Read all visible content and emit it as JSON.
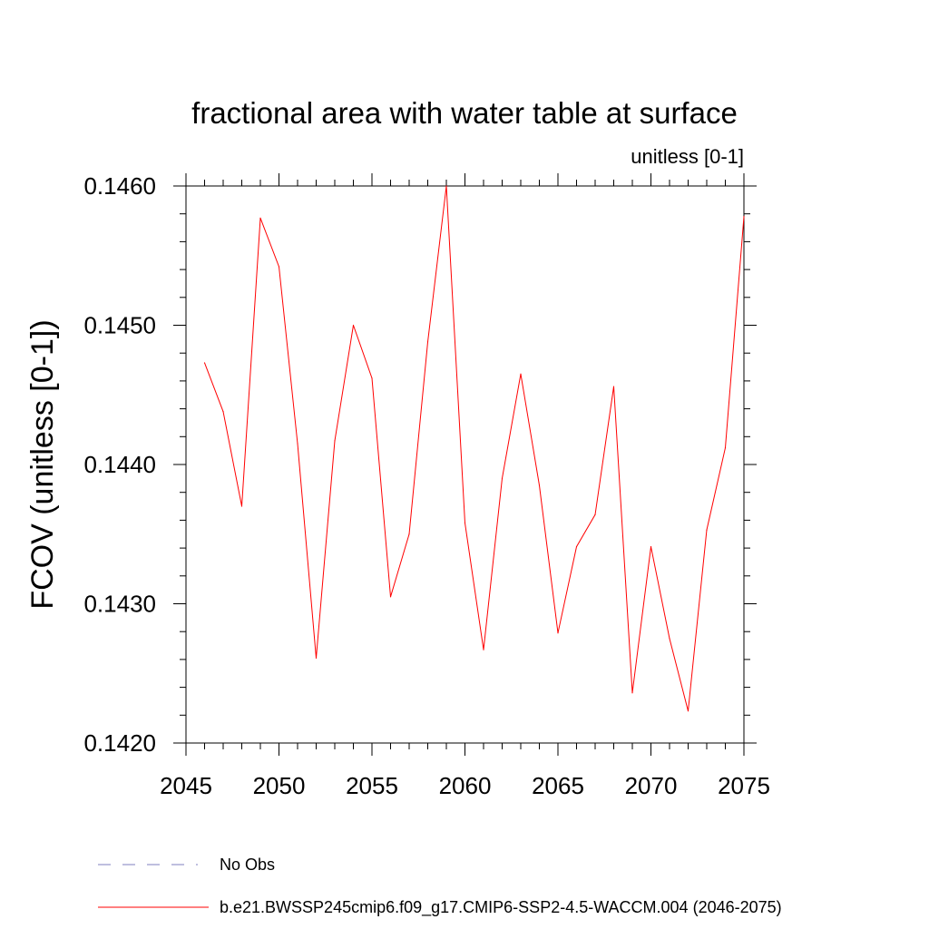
{
  "chart_data": {
    "type": "line",
    "title": "fractional area with water table at surface",
    "subtitle": "unitless [0-1]",
    "ylabel": "FCOV  (unitless [0-1])",
    "xlabel": "",
    "xlim": [
      2045,
      2075
    ],
    "ylim": [
      0.142,
      0.146
    ],
    "x_ticks": [
      2045,
      2050,
      2055,
      2060,
      2065,
      2070,
      2075
    ],
    "y_ticks": [
      0.142,
      0.143,
      0.144,
      0.145,
      0.146
    ],
    "x_tick_labels": [
      "2045",
      "2050",
      "2055",
      "2060",
      "2065",
      "2070",
      "2075"
    ],
    "y_tick_labels": [
      "0.1420",
      "0.1430",
      "0.1440",
      "0.1450",
      "0.1460"
    ],
    "x_minor_step": 1,
    "y_minor_step": 0.0002,
    "grid": false,
    "legend_position": "bottom",
    "series": [
      {
        "name": "b.e21.BWSSP245cmip6.f09_g17.CMIP6-SSP2-4.5-WACCM.004 (2046-2075)",
        "color": "#ff0000",
        "dash": "solid",
        "x": [
          2046,
          2047,
          2048,
          2049,
          2050,
          2051,
          2052,
          2053,
          2054,
          2055,
          2056,
          2057,
          2058,
          2059,
          2060,
          2061,
          2062,
          2063,
          2064,
          2065,
          2066,
          2067,
          2068,
          2069,
          2070,
          2071,
          2072,
          2073,
          2074,
          2075
        ],
        "y": [
          0.14473,
          0.14438,
          0.1437,
          0.14577,
          0.14542,
          0.14415,
          0.14261,
          0.14417,
          0.145,
          0.14462,
          0.14305,
          0.1435,
          0.14488,
          0.146,
          0.14358,
          0.14267,
          0.1439,
          0.14465,
          0.14385,
          0.14279,
          0.14341,
          0.14364,
          0.14456,
          0.14236,
          0.14341,
          0.14275,
          0.14223,
          0.14353,
          0.14412,
          0.14578
        ]
      }
    ],
    "legend": [
      {
        "label": "No Obs",
        "color": "#7f7fbf",
        "dash": "dashed"
      },
      {
        "label": "b.e21.BWSSP245cmip6.f09_g17.CMIP6-SSP2-4.5-WACCM.004 (2046-2075)",
        "color": "#ff0000",
        "dash": "solid"
      }
    ]
  }
}
